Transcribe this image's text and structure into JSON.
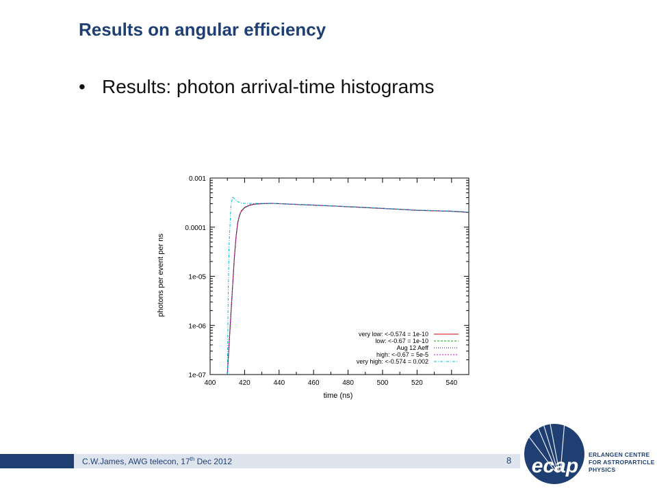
{
  "slide": {
    "title": "Results on angular efficiency",
    "bullet": "Results: photon arrival-time histograms",
    "bullet_marker": "•"
  },
  "footer": {
    "text_prefix": "C.W.James, AWG telecon, 17",
    "text_sup": "th",
    "text_suffix": " Dec 2012",
    "page_number": "8"
  },
  "logo": {
    "mark": "ecap",
    "line1": "ERLANGEN CENTRE",
    "line2": "FOR ASTROPARTICLE",
    "line3": "PHYSICS",
    "color": "#1f3f73"
  },
  "chart_data": {
    "type": "line",
    "xlabel": "time (ns)",
    "ylabel": "photons per event per ns",
    "xlim": [
      400,
      550
    ],
    "ylim": [
      1e-07,
      0.001
    ],
    "log_y": true,
    "grid": false,
    "legend_position": "bottom-right",
    "x_ticks": [
      400,
      420,
      440,
      460,
      480,
      500,
      520,
      540
    ],
    "y_ticks": [
      {
        "value": 1e-07,
        "label": "1e-07"
      },
      {
        "value": 1e-06,
        "label": "1e-06"
      },
      {
        "value": 1e-05,
        "label": "1e-05"
      },
      {
        "value": 0.0001,
        "label": "0.0001"
      },
      {
        "value": 0.001,
        "label": "0.001"
      }
    ],
    "series": [
      {
        "name": "very low: <-0.574 = 1e-10",
        "color": "#cc0000",
        "dash": "",
        "x": [
          410,
          411,
          412,
          413,
          414,
          415,
          416,
          417,
          418,
          420,
          423,
          426,
          430,
          436,
          440,
          450,
          460,
          470,
          480,
          490,
          500,
          510,
          520,
          530,
          540,
          550
        ],
        "y": [
          1e-07,
          4e-07,
          1.5e-06,
          6e-06,
          2.2e-05,
          6e-05,
          0.00012,
          0.00017,
          0.00021,
          0.00025,
          0.00028,
          0.000295,
          0.0003,
          0.000305,
          0.0003,
          0.00029,
          0.00028,
          0.00027,
          0.00026,
          0.00025,
          0.00024,
          0.00023,
          0.00022,
          0.000215,
          0.00021,
          0.0002
        ]
      },
      {
        "name": "low: <-0.67 = 1e-10",
        "color": "#00aa00",
        "dash": "3,2",
        "x": [
          410,
          411,
          412,
          413,
          414,
          415,
          416,
          417,
          418,
          420,
          423,
          426,
          430,
          436,
          440,
          450,
          460,
          470,
          480,
          490,
          500,
          510,
          520,
          530,
          540,
          550
        ],
        "y": [
          1e-07,
          4.2e-07,
          1.6e-06,
          6.2e-06,
          2.3e-05,
          6.2e-05,
          0.000122,
          0.000172,
          0.000212,
          0.000252,
          0.000282,
          0.000297,
          0.000302,
          0.000306,
          0.000302,
          0.000292,
          0.000282,
          0.000272,
          0.000262,
          0.000252,
          0.000242,
          0.000232,
          0.000222,
          0.000217,
          0.000212,
          0.000202
        ]
      },
      {
        "name": "Aug 12 Aeff",
        "color": "#000080",
        "dash": "1,2",
        "x": [
          410,
          411,
          412,
          413,
          414,
          415,
          416,
          417,
          418,
          420,
          423,
          426,
          430,
          436,
          440,
          450,
          460,
          470,
          480,
          490,
          500,
          510,
          520,
          530,
          540,
          550
        ],
        "y": [
          1e-07,
          3.8e-07,
          1.4e-06,
          5.8e-06,
          2.1e-05,
          5.8e-05,
          0.000118,
          0.000168,
          0.000208,
          0.000248,
          0.000278,
          0.000293,
          0.000298,
          0.000304,
          0.000299,
          0.000289,
          0.000279,
          0.000269,
          0.000259,
          0.000249,
          0.000239,
          0.000229,
          0.000219,
          0.000214,
          0.000209,
          0.000199
        ]
      },
      {
        "name": "high: <-0.67 = 5e-5",
        "color": "#cc00cc",
        "dash": "2,2",
        "x": [
          410,
          411,
          412,
          413,
          414,
          415,
          416,
          417,
          418,
          420,
          423,
          426,
          430,
          436,
          440,
          450,
          460,
          470,
          480,
          490,
          500,
          510,
          520,
          530,
          540,
          550
        ],
        "y": [
          1e-07,
          4.5e-07,
          1.7e-06,
          6.5e-06,
          2.4e-05,
          6.5e-05,
          0.000125,
          0.000175,
          0.000215,
          0.000255,
          0.000285,
          0.0003,
          0.000305,
          0.000308,
          0.000303,
          0.000293,
          0.000283,
          0.000273,
          0.000263,
          0.000253,
          0.000243,
          0.000233,
          0.000223,
          0.000218,
          0.000213,
          0.000203
        ]
      },
      {
        "name": "very high: <-0.574 = 0.002",
        "color": "#00bbdd",
        "dash": "4,2,1,2",
        "x": [
          410,
          410.5,
          411,
          412,
          413,
          414,
          416,
          418,
          420,
          426,
          430,
          436,
          440,
          450,
          460,
          470,
          480,
          490,
          500,
          510,
          520,
          530,
          540,
          550
        ],
        "y": [
          1e-07,
          5e-06,
          4e-05,
          0.00025,
          0.00042,
          0.00038,
          0.00033,
          0.00031,
          0.000305,
          0.000305,
          0.000305,
          0.000307,
          0.000302,
          0.000292,
          0.000282,
          0.000272,
          0.000262,
          0.000252,
          0.000242,
          0.000232,
          0.000222,
          0.000217,
          0.000212,
          0.000202
        ]
      }
    ]
  }
}
